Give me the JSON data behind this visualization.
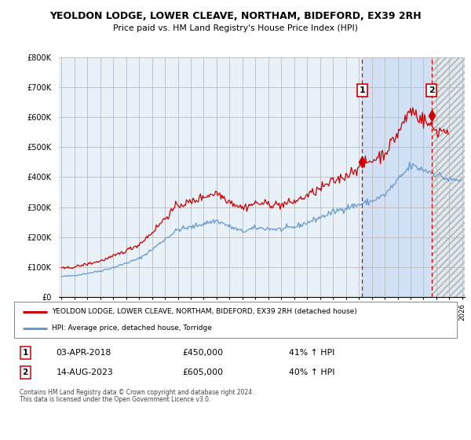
{
  "title": "YEOLDON LODGE, LOWER CLEAVE, NORTHAM, BIDEFORD, EX39 2RH",
  "subtitle": "Price paid vs. HM Land Registry's House Price Index (HPI)",
  "ylabel_ticks": [
    "£0",
    "£100K",
    "£200K",
    "£300K",
    "£400K",
    "£500K",
    "£600K",
    "£700K",
    "£800K"
  ],
  "ytick_values": [
    0,
    100000,
    200000,
    300000,
    400000,
    500000,
    600000,
    700000,
    800000
  ],
  "ylim": [
    0,
    800000
  ],
  "line1_color": "#cc0000",
  "line2_color": "#6699cc",
  "highlight_color": "#ddeeff",
  "background_color": "#e8f0f8",
  "legend1_label": "YEOLDON LODGE, LOWER CLEAVE, NORTHAM, BIDEFORD, EX39 2RH (detached house)",
  "legend2_label": "HPI: Average price, detached house, Torridge",
  "annotation1": {
    "num": "1",
    "date": "03-APR-2018",
    "price": "£450,000",
    "pct": "41% ↑ HPI"
  },
  "annotation2": {
    "num": "2",
    "date": "14-AUG-2023",
    "price": "£605,000",
    "pct": "40% ↑ HPI"
  },
  "footnote1": "Contains HM Land Registry data © Crown copyright and database right 2024.",
  "footnote2": "This data is licensed under the Open Government Licence v3.0.",
  "vline1_x": 2018.25,
  "vline2_x": 2023.62,
  "point1_y": 450000,
  "point2_y": 605000,
  "xlim_start": 1994.8,
  "xlim_end": 2026.2
}
